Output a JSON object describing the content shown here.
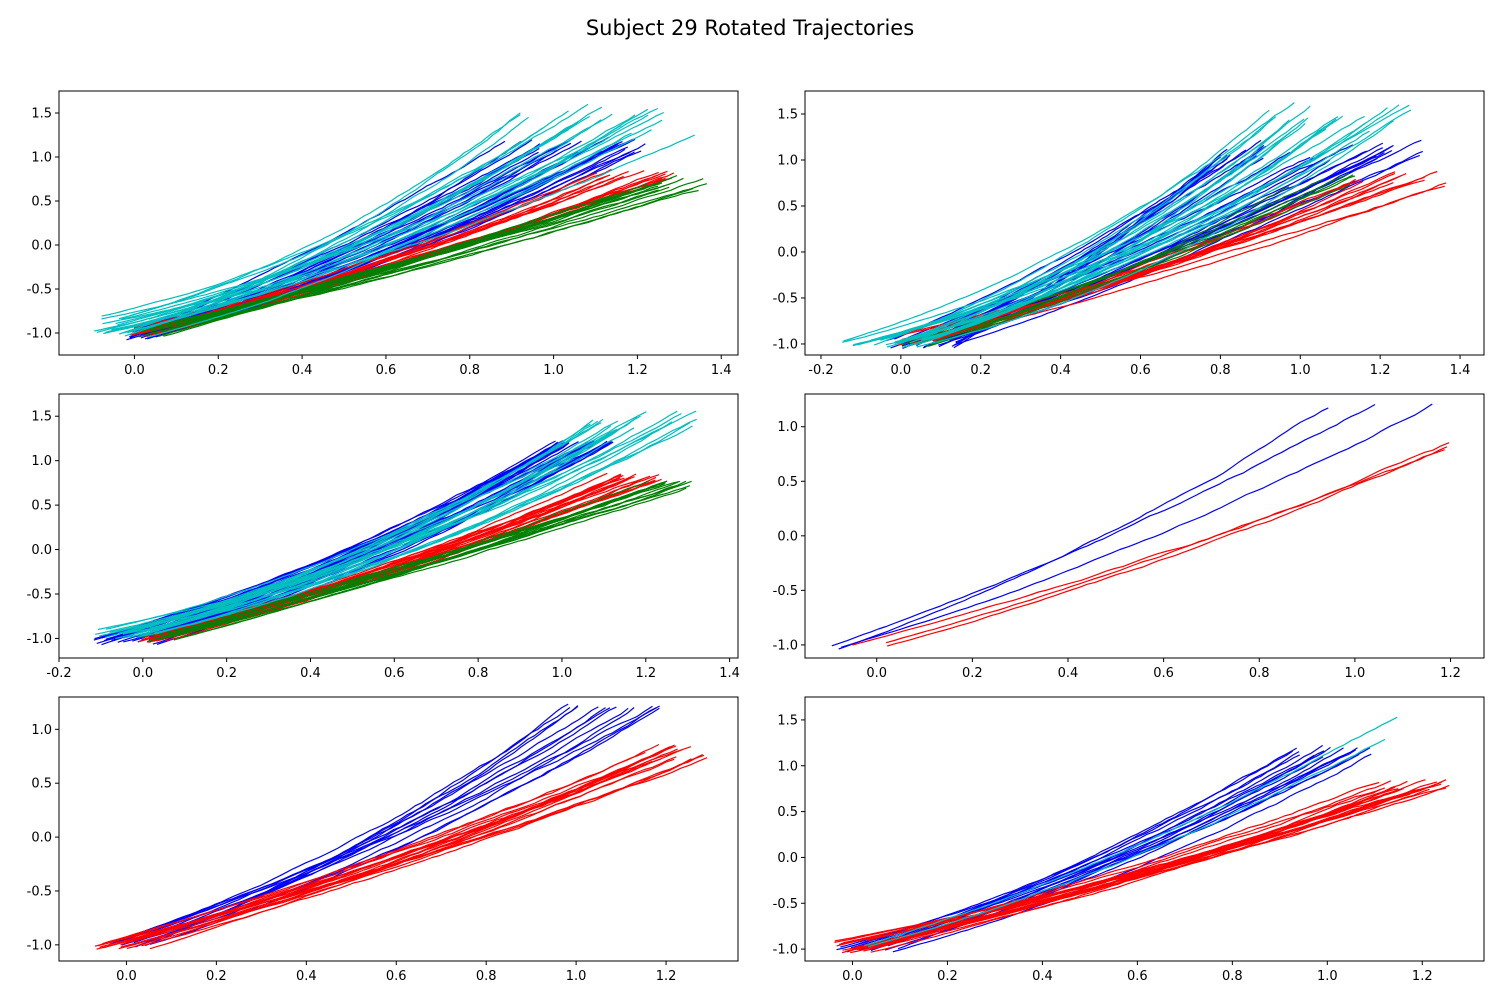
{
  "figure_title": "Subject 29 Rotated Trajectories",
  "colors": {
    "blue": "#0000ff",
    "red": "#ff0000",
    "green": "#008000",
    "cyan": "#00bfbf"
  },
  "chart_data": [
    {
      "type": "line",
      "title": "",
      "xlabel": "",
      "ylabel": "",
      "xlim": [
        -0.18,
        1.44
      ],
      "ylim": [
        -1.25,
        1.75
      ],
      "xticks": [
        "0.0",
        "0.2",
        "0.4",
        "0.6",
        "0.8",
        "1.0",
        "1.2",
        "1.4"
      ],
      "xtick_values": [
        0.0,
        0.2,
        0.4,
        0.6,
        0.8,
        1.0,
        1.2,
        1.4
      ],
      "yticks": [
        "-1.0",
        "-0.5",
        "0.0",
        "0.5",
        "1.0",
        "1.5"
      ],
      "ytick_values": [
        -1.0,
        -0.5,
        0.0,
        0.5,
        1.0,
        1.5
      ],
      "series": [
        {
          "name": "blue",
          "color": "#0000ff",
          "count": 28,
          "start_x": [
            -0.02,
            0.06
          ],
          "start_y": [
            -1.08,
            -0.93
          ],
          "end_x": [
            0.86,
            1.24
          ],
          "end_y": [
            1.05,
            1.22
          ],
          "bend": [
            0.4,
            0.8
          ]
        },
        {
          "name": "red",
          "color": "#ff0000",
          "count": 18,
          "start_x": [
            -0.02,
            0.06
          ],
          "start_y": [
            -1.04,
            -0.93
          ],
          "end_x": [
            1.1,
            1.3
          ],
          "end_y": [
            0.75,
            0.86
          ],
          "bend": [
            0.3,
            0.55
          ]
        },
        {
          "name": "green",
          "color": "#008000",
          "count": 16,
          "start_x": [
            0.0,
            0.08
          ],
          "start_y": [
            -1.04,
            -0.95
          ],
          "end_x": [
            1.22,
            1.37
          ],
          "end_y": [
            0.62,
            0.78
          ],
          "bend": [
            0.15,
            0.35
          ]
        },
        {
          "name": "cyan",
          "color": "#00bfbf",
          "count": 22,
          "start_x": [
            -0.1,
            0.04
          ],
          "start_y": [
            -1.05,
            -0.8
          ],
          "end_x": [
            0.9,
            1.34
          ],
          "end_y": [
            1.25,
            1.62
          ],
          "bend": [
            0.75,
            1.2
          ]
        }
      ]
    },
    {
      "type": "line",
      "title": "",
      "xlabel": "",
      "ylabel": "",
      "xlim": [
        -0.24,
        1.46
      ],
      "ylim": [
        -1.12,
        1.75
      ],
      "xticks": [
        "-0.2",
        "0.0",
        "0.2",
        "0.4",
        "0.6",
        "0.8",
        "1.0",
        "1.2",
        "1.4"
      ],
      "xtick_values": [
        -0.2,
        0.0,
        0.2,
        0.4,
        0.6,
        0.8,
        1.0,
        1.2,
        1.4
      ],
      "yticks": [
        "-1.0",
        "-0.5",
        "0.0",
        "0.5",
        "1.0",
        "1.5"
      ],
      "ytick_values": [
        -1.0,
        -0.5,
        0.0,
        0.5,
        1.0,
        1.5
      ],
      "series": [
        {
          "name": "blue",
          "color": "#0000ff",
          "count": 30,
          "start_x": [
            -0.04,
            0.14
          ],
          "start_y": [
            -1.06,
            -0.93
          ],
          "end_x": [
            0.78,
            1.33
          ],
          "end_y": [
            1.0,
            1.22
          ],
          "bend": [
            0.2,
            0.7
          ]
        },
        {
          "name": "red",
          "color": "#ff0000",
          "count": 14,
          "start_x": [
            -0.02,
            0.08
          ],
          "start_y": [
            -1.03,
            -0.9
          ],
          "end_x": [
            1.1,
            1.37
          ],
          "end_y": [
            0.72,
            0.88
          ],
          "bend": [
            0.3,
            0.55
          ]
        },
        {
          "name": "green",
          "color": "#008000",
          "count": 6,
          "start_x": [
            0.0,
            0.08
          ],
          "start_y": [
            -1.03,
            -0.95
          ],
          "end_x": [
            0.95,
            1.2
          ],
          "end_y": [
            0.7,
            0.9
          ],
          "bend": [
            0.3,
            0.5
          ]
        },
        {
          "name": "cyan",
          "color": "#00bfbf",
          "count": 24,
          "start_x": [
            -0.15,
            0.06
          ],
          "start_y": [
            -1.05,
            -0.95
          ],
          "end_x": [
            0.9,
            1.3
          ],
          "end_y": [
            1.3,
            1.62
          ],
          "bend": [
            0.9,
            1.3
          ]
        }
      ]
    },
    {
      "type": "line",
      "title": "",
      "xlabel": "",
      "ylabel": "",
      "xlim": [
        -0.2,
        1.42
      ],
      "ylim": [
        -1.22,
        1.75
      ],
      "xticks": [
        "-0.2",
        "0.0",
        "0.2",
        "0.4",
        "0.6",
        "0.8",
        "1.0",
        "1.2",
        "1.4"
      ],
      "xtick_values": [
        -0.2,
        0.0,
        0.2,
        0.4,
        0.6,
        0.8,
        1.0,
        1.2,
        1.4
      ],
      "yticks": [
        "-1.0",
        "-0.5",
        "0.0",
        "0.5",
        "1.0",
        "1.5"
      ],
      "ytick_values": [
        -1.0,
        -0.5,
        0.0,
        0.5,
        1.0,
        1.5
      ],
      "series": [
        {
          "name": "blue",
          "color": "#0000ff",
          "count": 32,
          "start_x": [
            -0.12,
            0.04
          ],
          "start_y": [
            -1.07,
            -0.95
          ],
          "end_x": [
            0.98,
            1.13
          ],
          "end_y": [
            1.2,
            1.22
          ],
          "bend": [
            0.5,
            0.9
          ]
        },
        {
          "name": "red",
          "color": "#ff0000",
          "count": 18,
          "start_x": [
            -0.02,
            0.06
          ],
          "start_y": [
            -1.05,
            -0.94
          ],
          "end_x": [
            1.1,
            1.24
          ],
          "end_y": [
            0.78,
            0.86
          ],
          "bend": [
            0.3,
            0.55
          ]
        },
        {
          "name": "green",
          "color": "#008000",
          "count": 14,
          "start_x": [
            0.0,
            0.08
          ],
          "start_y": [
            -1.04,
            -0.95
          ],
          "end_x": [
            1.2,
            1.31
          ],
          "end_y": [
            0.7,
            0.8
          ],
          "bend": [
            0.2,
            0.35
          ]
        },
        {
          "name": "cyan",
          "color": "#00bfbf",
          "count": 22,
          "start_x": [
            -0.12,
            0.03
          ],
          "start_y": [
            -1.0,
            -0.88
          ],
          "end_x": [
            1.06,
            1.33
          ],
          "end_y": [
            1.3,
            1.62
          ],
          "bend": [
            0.8,
            1.2
          ]
        }
      ]
    },
    {
      "type": "line",
      "title": "",
      "xlabel": "",
      "ylabel": "",
      "xlim": [
        -0.15,
        1.27
      ],
      "ylim": [
        -1.12,
        1.3
      ],
      "xticks": [
        "0.0",
        "0.2",
        "0.4",
        "0.6",
        "0.8",
        "1.0",
        "1.2"
      ],
      "xtick_values": [
        0.0,
        0.2,
        0.4,
        0.6,
        0.8,
        1.0,
        1.2
      ],
      "yticks": [
        "-1.0",
        "-0.5",
        "0.0",
        "0.5",
        "1.0"
      ],
      "ytick_values": [
        -1.0,
        -0.5,
        0.0,
        0.5,
        1.0
      ],
      "series": [
        {
          "name": "blue",
          "color": "#0000ff",
          "count": 3,
          "start_x": [
            -0.1,
            -0.07
          ],
          "start_y": [
            -1.04,
            -1.0
          ],
          "end_x": [
            0.94,
            1.19
          ],
          "end_y": [
            1.18,
            1.22
          ],
          "bend": [
            0.4,
            0.9
          ]
        },
        {
          "name": "red",
          "color": "#ff0000",
          "count": 3,
          "start_x": [
            -0.06,
            0.08
          ],
          "start_y": [
            -1.02,
            -0.96
          ],
          "end_x": [
            1.17,
            1.2
          ],
          "end_y": [
            0.78,
            0.86
          ],
          "bend": [
            0.3,
            0.45
          ]
        }
      ]
    },
    {
      "type": "line",
      "title": "",
      "xlabel": "",
      "ylabel": "",
      "xlim": [
        -0.15,
        1.36
      ],
      "ylim": [
        -1.15,
        1.3
      ],
      "xticks": [
        "0.0",
        "0.2",
        "0.4",
        "0.6",
        "0.8",
        "1.0",
        "1.2"
      ],
      "xtick_values": [
        0.0,
        0.2,
        0.4,
        0.6,
        0.8,
        1.0,
        1.2
      ],
      "yticks": [
        "-1.0",
        "-0.5",
        "0.0",
        "0.5",
        "1.0"
      ],
      "ytick_values": [
        -1.0,
        -0.5,
        0.0,
        0.5,
        1.0
      ],
      "series": [
        {
          "name": "blue",
          "color": "#0000ff",
          "count": 14,
          "start_x": [
            -0.04,
            0.06
          ],
          "start_y": [
            -1.02,
            -0.95
          ],
          "end_x": [
            0.98,
            1.19
          ],
          "end_y": [
            1.2,
            1.22
          ],
          "bend": [
            0.5,
            0.9
          ]
        },
        {
          "name": "red",
          "color": "#ff0000",
          "count": 18,
          "start_x": [
            -0.08,
            0.06
          ],
          "start_y": [
            -1.05,
            -0.94
          ],
          "end_x": [
            1.14,
            1.3
          ],
          "end_y": [
            0.72,
            0.86
          ],
          "bend": [
            0.3,
            0.5
          ]
        }
      ]
    },
    {
      "type": "line",
      "title": "",
      "xlabel": "",
      "ylabel": "",
      "xlim": [
        -0.1,
        1.33
      ],
      "ylim": [
        -1.13,
        1.75
      ],
      "xticks": [
        "0.0",
        "0.2",
        "0.4",
        "0.6",
        "0.8",
        "1.0",
        "1.2"
      ],
      "xtick_values": [
        0.0,
        0.2,
        0.4,
        0.6,
        0.8,
        1.0,
        1.2
      ],
      "yticks": [
        "-1.0",
        "-0.5",
        "0.0",
        "0.5",
        "1.0",
        "1.5"
      ],
      "ytick_values": [
        -1.0,
        -0.5,
        0.0,
        0.5,
        1.0,
        1.5
      ],
      "series": [
        {
          "name": "blue",
          "color": "#0000ff",
          "count": 16,
          "start_x": [
            -0.04,
            0.1
          ],
          "start_y": [
            -1.03,
            -0.95
          ],
          "end_x": [
            0.92,
            1.1
          ],
          "end_y": [
            1.1,
            1.22
          ],
          "bend": [
            0.4,
            0.9
          ]
        },
        {
          "name": "red",
          "color": "#ff0000",
          "count": 20,
          "start_x": [
            -0.04,
            0.04
          ],
          "start_y": [
            -1.04,
            -0.9
          ],
          "end_x": [
            1.1,
            1.27
          ],
          "end_y": [
            0.72,
            0.86
          ],
          "bend": [
            0.3,
            0.5
          ]
        },
        {
          "name": "cyan",
          "color": "#00bfbf",
          "count": 2,
          "start_x": [
            -0.02,
            0.04
          ],
          "start_y": [
            -1.0,
            -0.95
          ],
          "end_x": [
            1.08,
            1.2
          ],
          "end_y": [
            0.95,
            1.62
          ],
          "bend": [
            0.5,
            0.9
          ]
        }
      ]
    }
  ]
}
